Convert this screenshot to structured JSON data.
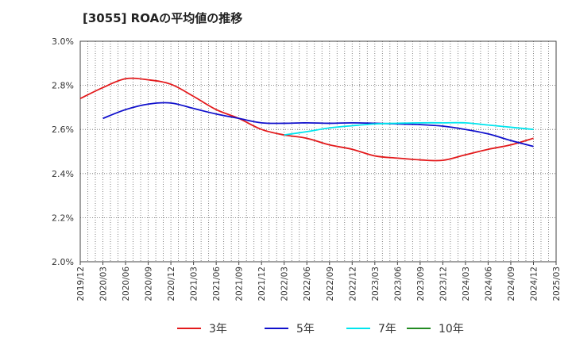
{
  "chart_data": {
    "type": "line",
    "title": "[3055]  ROAの平均値の推移",
    "xlabel": "",
    "ylabel": "",
    "ylim": [
      2.0,
      3.0
    ],
    "y_ticks": [
      "2.0%",
      "2.2%",
      "2.4%",
      "2.6%",
      "2.8%",
      "3.0%"
    ],
    "x_ticks": [
      "2019/12",
      "2020/03",
      "2020/06",
      "2020/09",
      "2020/12",
      "2021/03",
      "2021/06",
      "2021/09",
      "2021/12",
      "2022/03",
      "2022/06",
      "2022/09",
      "2022/12",
      "2023/03",
      "2023/06",
      "2023/09",
      "2023/12",
      "2024/03",
      "2024/06",
      "2024/09",
      "2024/12",
      "2025/03"
    ],
    "grid": true,
    "legend_position": "bottom",
    "series": [
      {
        "name": "3年",
        "color": "#e31a1c",
        "x": [
          "2019/12",
          "2020/03",
          "2020/06",
          "2020/09",
          "2020/12",
          "2021/03",
          "2021/06",
          "2021/09",
          "2021/12",
          "2022/03",
          "2022/06",
          "2022/09",
          "2022/12",
          "2023/03",
          "2023/06",
          "2023/09",
          "2023/12",
          "2024/03",
          "2024/06",
          "2024/09",
          "2024/12"
        ],
        "values": [
          2.74,
          2.79,
          2.83,
          2.825,
          2.805,
          2.75,
          2.69,
          2.65,
          2.6,
          2.575,
          2.56,
          2.53,
          2.51,
          2.48,
          2.47,
          2.462,
          2.46,
          2.485,
          2.51,
          2.53,
          2.56
        ]
      },
      {
        "name": "5年",
        "color": "#1010cc",
        "x": [
          "2020/03",
          "2020/06",
          "2020/09",
          "2020/12",
          "2021/03",
          "2021/06",
          "2021/09",
          "2021/12",
          "2022/03",
          "2022/06",
          "2022/09",
          "2022/12",
          "2023/03",
          "2023/06",
          "2023/09",
          "2023/12",
          "2024/03",
          "2024/06",
          "2024/09",
          "2024/12"
        ],
        "values": [
          2.65,
          2.69,
          2.715,
          2.72,
          2.695,
          2.67,
          2.65,
          2.63,
          2.628,
          2.63,
          2.628,
          2.63,
          2.628,
          2.625,
          2.622,
          2.615,
          2.6,
          2.58,
          2.55,
          2.523
        ]
      },
      {
        "name": "7年",
        "color": "#00e5ee",
        "x": [
          "2022/03",
          "2022/06",
          "2022/09",
          "2022/12",
          "2023/03",
          "2023/06",
          "2023/09",
          "2023/12",
          "2024/03",
          "2024/06",
          "2024/09",
          "2024/12"
        ],
        "values": [
          2.575,
          2.59,
          2.607,
          2.617,
          2.625,
          2.628,
          2.63,
          2.63,
          2.63,
          2.62,
          2.61,
          2.6
        ]
      },
      {
        "name": "10年",
        "color": "#228b22",
        "x": [],
        "values": []
      }
    ]
  }
}
